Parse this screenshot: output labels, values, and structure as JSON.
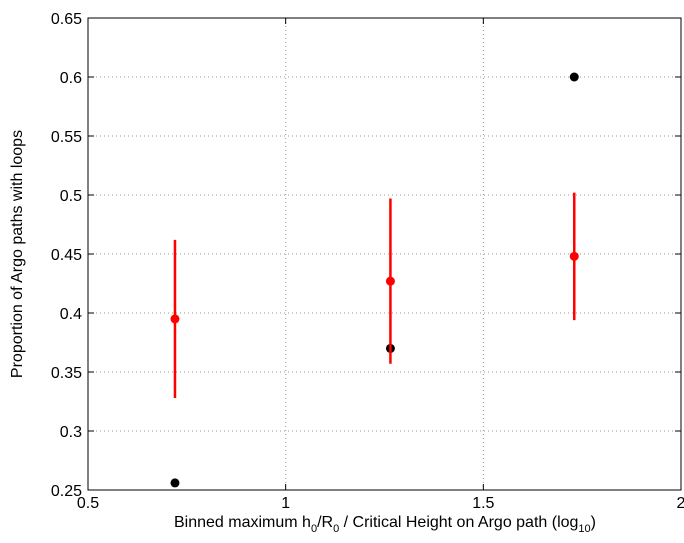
{
  "chart_data": {
    "type": "scatter",
    "xlabel": [
      "Binned maximum h",
      "0",
      "/R",
      "0",
      " / Critical Height on Argo path (log",
      "10",
      ")"
    ],
    "ylabel": "Proportion of Argo paths with loops",
    "xlim": [
      0.5,
      2
    ],
    "xticks": [
      0.5,
      1,
      1.5,
      2
    ],
    "ylim": [
      0.25,
      0.65
    ],
    "yticks": [
      0.25,
      0.3,
      0.35,
      0.4,
      0.45,
      0.5,
      0.55,
      0.6,
      0.65
    ],
    "grid": true,
    "series": [
      {
        "color": "#000000",
        "x": [
          0.72,
          1.265,
          1.73
        ],
        "values": [
          0.256,
          0.37,
          0.6
        ]
      },
      {
        "color": "#ff0000",
        "x": [
          0.72,
          1.265,
          1.73
        ],
        "values": [
          0.395,
          0.427,
          0.448
        ],
        "errors": [
          0.067,
          0.07,
          0.054
        ]
      }
    ]
  }
}
